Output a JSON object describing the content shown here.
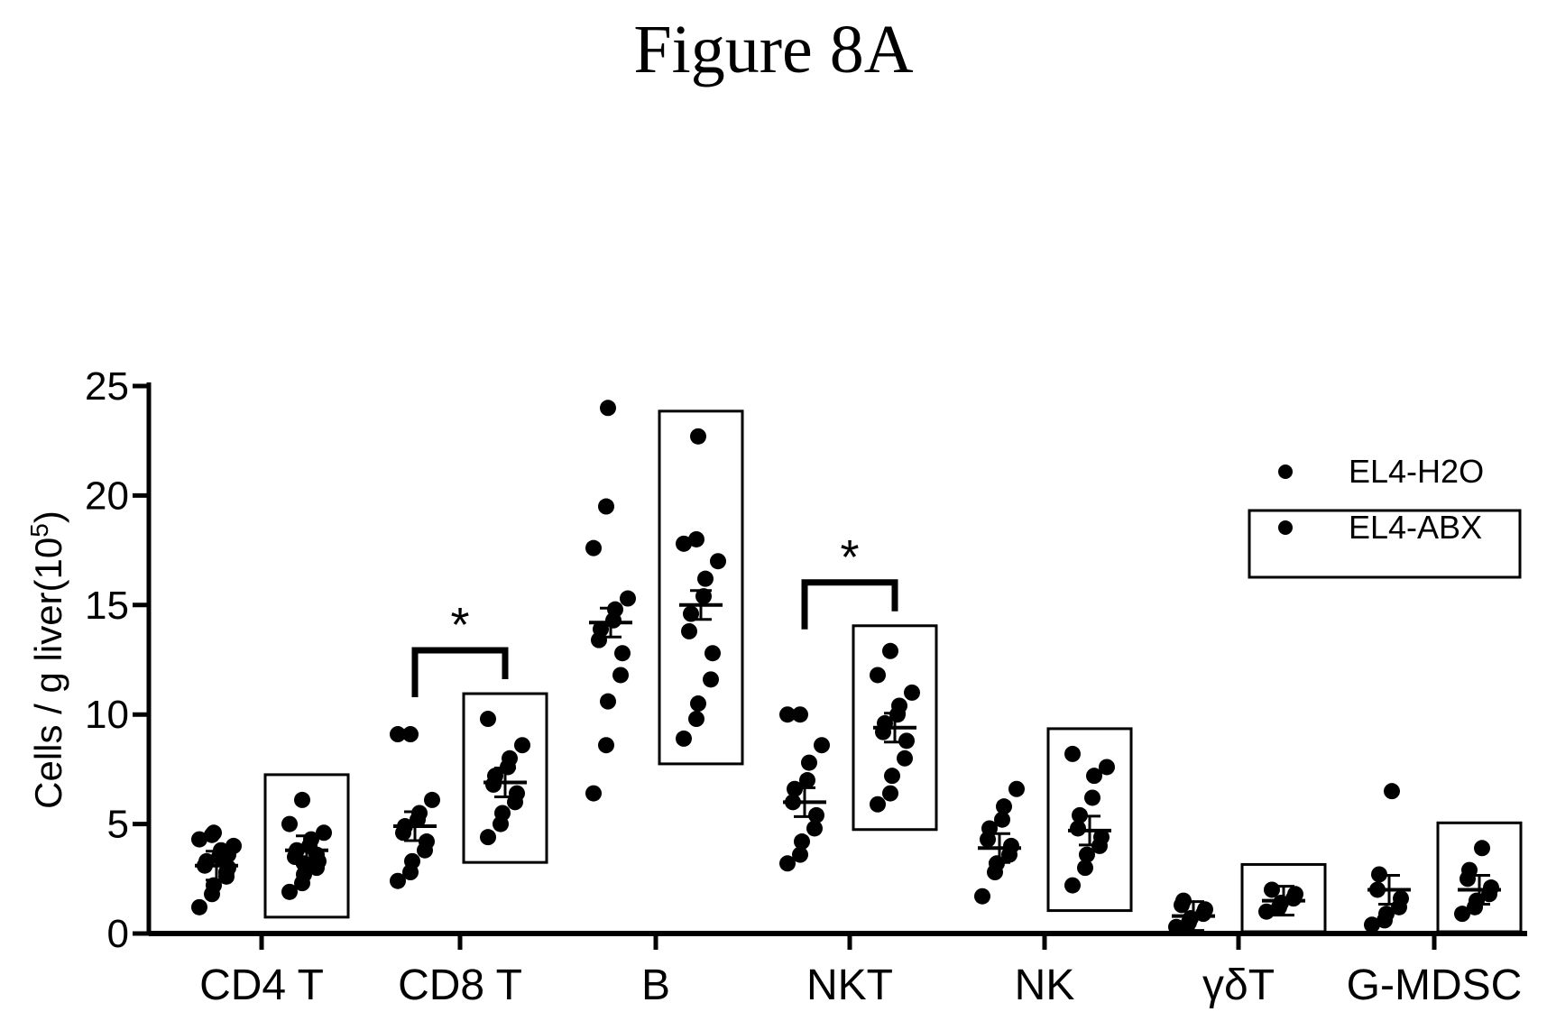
{
  "figure": {
    "title": "Figure 8A"
  },
  "chart_data": {
    "type": "scatter",
    "ylabel": "Cells / g liver(10",
    "ylabel_sup": "5",
    "ylabel_close": ")",
    "ylim": [
      0,
      25
    ],
    "yticks": [
      "0",
      "5",
      "10",
      "15",
      "20",
      "25"
    ],
    "ytick_values": [
      0,
      5,
      10,
      15,
      20,
      25
    ],
    "categories": [
      "CD4 T",
      "CD8 T",
      "B",
      "NKT",
      "NK",
      "γδT",
      "G-MDSC"
    ],
    "series": [
      {
        "name": "EL4-H2O",
        "color": "#000000",
        "values": [
          [
            1.2,
            1.8,
            2.2,
            2.6,
            3.0,
            3.1,
            3.3,
            3.5,
            3.8,
            4.0,
            4.3,
            4.5,
            4.6,
            2.8,
            3.6
          ],
          [
            2.4,
            2.8,
            3.3,
            3.8,
            4.2,
            4.6,
            4.9,
            5.2,
            5.5,
            6.1,
            9.1,
            9.1
          ],
          [
            6.4,
            8.6,
            10.6,
            11.8,
            12.8,
            13.4,
            13.9,
            14.3,
            14.8,
            15.3,
            17.6,
            19.5,
            24.0
          ],
          [
            3.2,
            3.6,
            4.2,
            4.8,
            5.4,
            6.0,
            6.6,
            7.0,
            7.8,
            8.6,
            10.0,
            10.0
          ],
          [
            1.7,
            2.8,
            3.2,
            3.6,
            4.0,
            4.3,
            4.8,
            5.2,
            5.8,
            6.6
          ],
          [
            0.3,
            0.5,
            0.7,
            0.9,
            1.1,
            1.3,
            1.5
          ],
          [
            0.4,
            0.6,
            0.9,
            1.2,
            1.6,
            2.0,
            2.7,
            6.5
          ]
        ]
      },
      {
        "name": "EL4-ABX",
        "color": "#000000",
        "values": [
          [
            1.9,
            2.3,
            2.7,
            3.0,
            3.3,
            3.5,
            3.8,
            4.0,
            4.3,
            4.6,
            5.0,
            6.1,
            3.2,
            3.6
          ],
          [
            4.4,
            5.0,
            5.5,
            6.0,
            6.4,
            6.8,
            7.2,
            7.6,
            8.0,
            8.6,
            9.8
          ],
          [
            8.9,
            9.8,
            10.5,
            11.6,
            12.8,
            13.8,
            14.6,
            15.4,
            16.2,
            17.0,
            17.8,
            18.0,
            22.7
          ],
          [
            5.9,
            6.4,
            7.2,
            8.0,
            8.8,
            9.2,
            9.6,
            10.0,
            10.4,
            11.0,
            11.8,
            12.9
          ],
          [
            2.2,
            3.0,
            3.6,
            4.0,
            4.4,
            4.8,
            5.4,
            6.2,
            7.2,
            7.6,
            8.2
          ],
          [
            1.0,
            1.2,
            1.4,
            1.6,
            1.8,
            2.0
          ],
          [
            0.9,
            1.2,
            1.5,
            1.8,
            2.1,
            2.5,
            2.9,
            3.9
          ]
        ]
      }
    ],
    "means": {
      "EL4-H2O": [
        3.1,
        4.9,
        14.2,
        6.0,
        3.9,
        0.8,
        2.0
      ],
      "EL4-ABX": [
        3.8,
        6.9,
        15.0,
        9.4,
        4.7,
        1.5,
        2.0
      ]
    },
    "boxed_series": "EL4-ABX",
    "significance": [
      {
        "category": "CD8 T",
        "label": "*"
      },
      {
        "category": "NKT",
        "label": "*"
      }
    ],
    "legend": {
      "position": "top-right",
      "entries": [
        "EL4-H2O",
        "EL4-ABX"
      ]
    },
    "grid": false
  }
}
